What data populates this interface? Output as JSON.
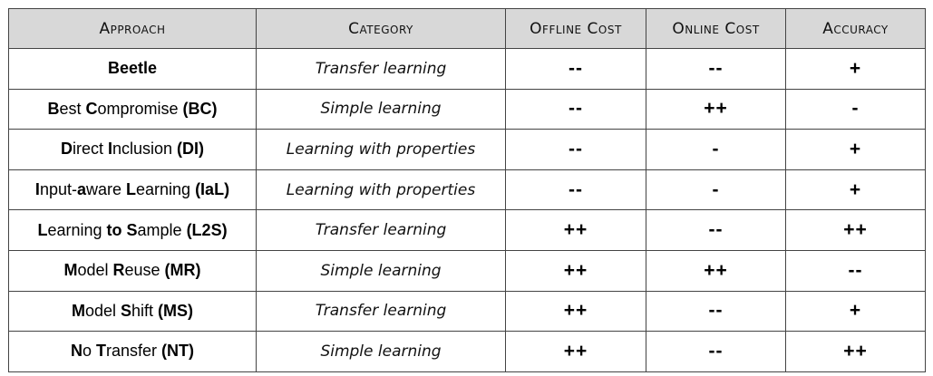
{
  "table": {
    "headers": [
      "Approach",
      "Category",
      "Offline Cost",
      "Online Cost",
      "Accuracy"
    ],
    "rows": [
      {
        "approach": "Beetle",
        "approach_parts": [
          {
            "t": "Beetle",
            "b": true
          }
        ],
        "category": "Transfer learning",
        "offline": "--",
        "online": "--",
        "accuracy": "+"
      },
      {
        "approach": "Best Compromise (BC)",
        "approach_parts": [
          {
            "t": "B",
            "b": true
          },
          {
            "t": "est ",
            "b": false
          },
          {
            "t": "C",
            "b": true
          },
          {
            "t": "ompromise ",
            "b": false
          },
          {
            "t": "(BC)",
            "b": true
          }
        ],
        "category": "Simple learning",
        "offline": "--",
        "online": "++",
        "accuracy": "-"
      },
      {
        "approach": "Direct Inclusion (DI)",
        "approach_parts": [
          {
            "t": "D",
            "b": true
          },
          {
            "t": "irect ",
            "b": false
          },
          {
            "t": "I",
            "b": true
          },
          {
            "t": "nclusion ",
            "b": false
          },
          {
            "t": "(DI)",
            "b": true
          }
        ],
        "category": "Learning with properties",
        "offline": "--",
        "online": "-",
        "accuracy": "+"
      },
      {
        "approach": "Input-aware Learning (IaL)",
        "approach_parts": [
          {
            "t": "I",
            "b": true
          },
          {
            "t": "nput-",
            "b": false
          },
          {
            "t": "a",
            "b": true
          },
          {
            "t": "ware ",
            "b": false
          },
          {
            "t": "L",
            "b": true
          },
          {
            "t": "earning ",
            "b": false
          },
          {
            "t": "(IaL)",
            "b": true
          }
        ],
        "category": "Learning with properties",
        "offline": "--",
        "online": "-",
        "accuracy": "+"
      },
      {
        "approach": "Learning to Sample (L2S)",
        "approach_parts": [
          {
            "t": "L",
            "b": true
          },
          {
            "t": "earning ",
            "b": false
          },
          {
            "t": "to",
            "b": true
          },
          {
            "t": " ",
            "b": false
          },
          {
            "t": "S",
            "b": true
          },
          {
            "t": "ample ",
            "b": false
          },
          {
            "t": "(L2S)",
            "b": true
          }
        ],
        "category": "Transfer learning",
        "offline": "++",
        "online": "--",
        "accuracy": "++"
      },
      {
        "approach": "Model Reuse (MR)",
        "approach_parts": [
          {
            "t": "M",
            "b": true
          },
          {
            "t": "odel ",
            "b": false
          },
          {
            "t": "R",
            "b": true
          },
          {
            "t": "euse ",
            "b": false
          },
          {
            "t": "(MR)",
            "b": true
          }
        ],
        "category": "Simple learning",
        "offline": "++",
        "online": "++",
        "accuracy": "--"
      },
      {
        "approach": "Model Shift (MS)",
        "approach_parts": [
          {
            "t": "M",
            "b": true
          },
          {
            "t": "odel ",
            "b": false
          },
          {
            "t": "S",
            "b": true
          },
          {
            "t": "hift ",
            "b": false
          },
          {
            "t": "(MS)",
            "b": true
          }
        ],
        "category": "Transfer learning",
        "offline": "++",
        "online": "--",
        "accuracy": "+"
      },
      {
        "approach": "No Transfer (NT)",
        "approach_parts": [
          {
            "t": "N",
            "b": true
          },
          {
            "t": "o ",
            "b": false
          },
          {
            "t": "T",
            "b": true
          },
          {
            "t": "ransfer ",
            "b": false
          },
          {
            "t": "(NT)",
            "b": true
          }
        ],
        "category": "Simple learning",
        "offline": "++",
        "online": "--",
        "accuracy": "++"
      }
    ]
  },
  "colors": {
    "header_bg": "#d8d8d8",
    "border": "#444444",
    "text": "#000000"
  }
}
